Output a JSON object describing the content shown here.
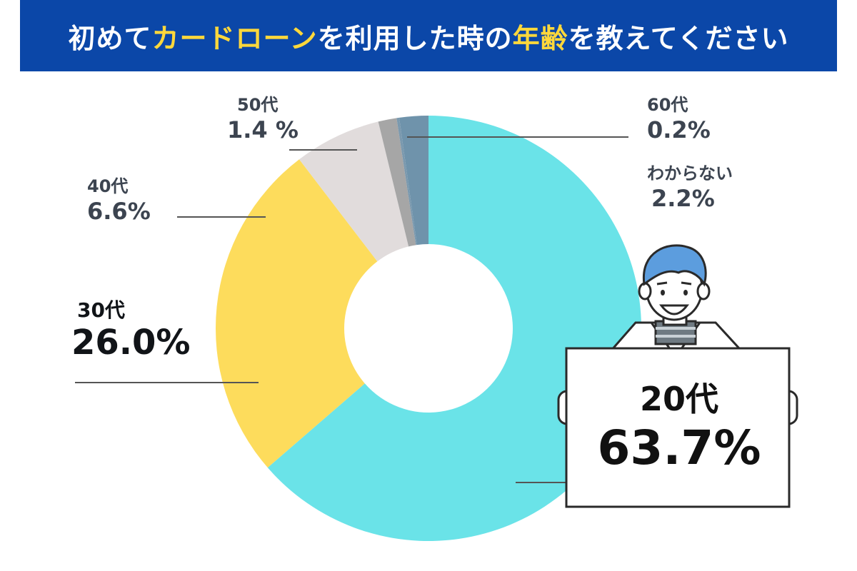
{
  "title": {
    "parts": [
      {
        "text": "初めて",
        "highlight": false
      },
      {
        "text": "カードローン",
        "highlight": true
      },
      {
        "text": "を利用した時の",
        "highlight": false
      },
      {
        "text": "年齢",
        "highlight": true
      },
      {
        "text": "を教えてください",
        "highlight": false
      }
    ]
  },
  "colors": {
    "banner": "#0b47a8",
    "highlight": "#ffd83b"
  },
  "chart_data": {
    "type": "pie",
    "variant": "donut",
    "title": "初めてカードローンを利用した時の年齢を教えてください",
    "slices": [
      {
        "label": "20代",
        "value": 63.7,
        "display": "63.7%",
        "color": "#6ae3e8"
      },
      {
        "label": "30代",
        "value": 26.0,
        "display": "26.0%",
        "color": "#fddc5c"
      },
      {
        "label": "40代",
        "value": 6.6,
        "display": "6.6%",
        "color": "#e1dcdc"
      },
      {
        "label": "50代",
        "value": 1.4,
        "display": "1.4 %",
        "color": "#a6a6a6"
      },
      {
        "label": "60代",
        "value": 0.2,
        "display": "0.2%",
        "color": "#7b99ae"
      },
      {
        "label": "わからない",
        "value": 2.2,
        "display": "2.2%",
        "color": "#6f93ab"
      }
    ],
    "start": "top",
    "direction": "clockwise"
  }
}
